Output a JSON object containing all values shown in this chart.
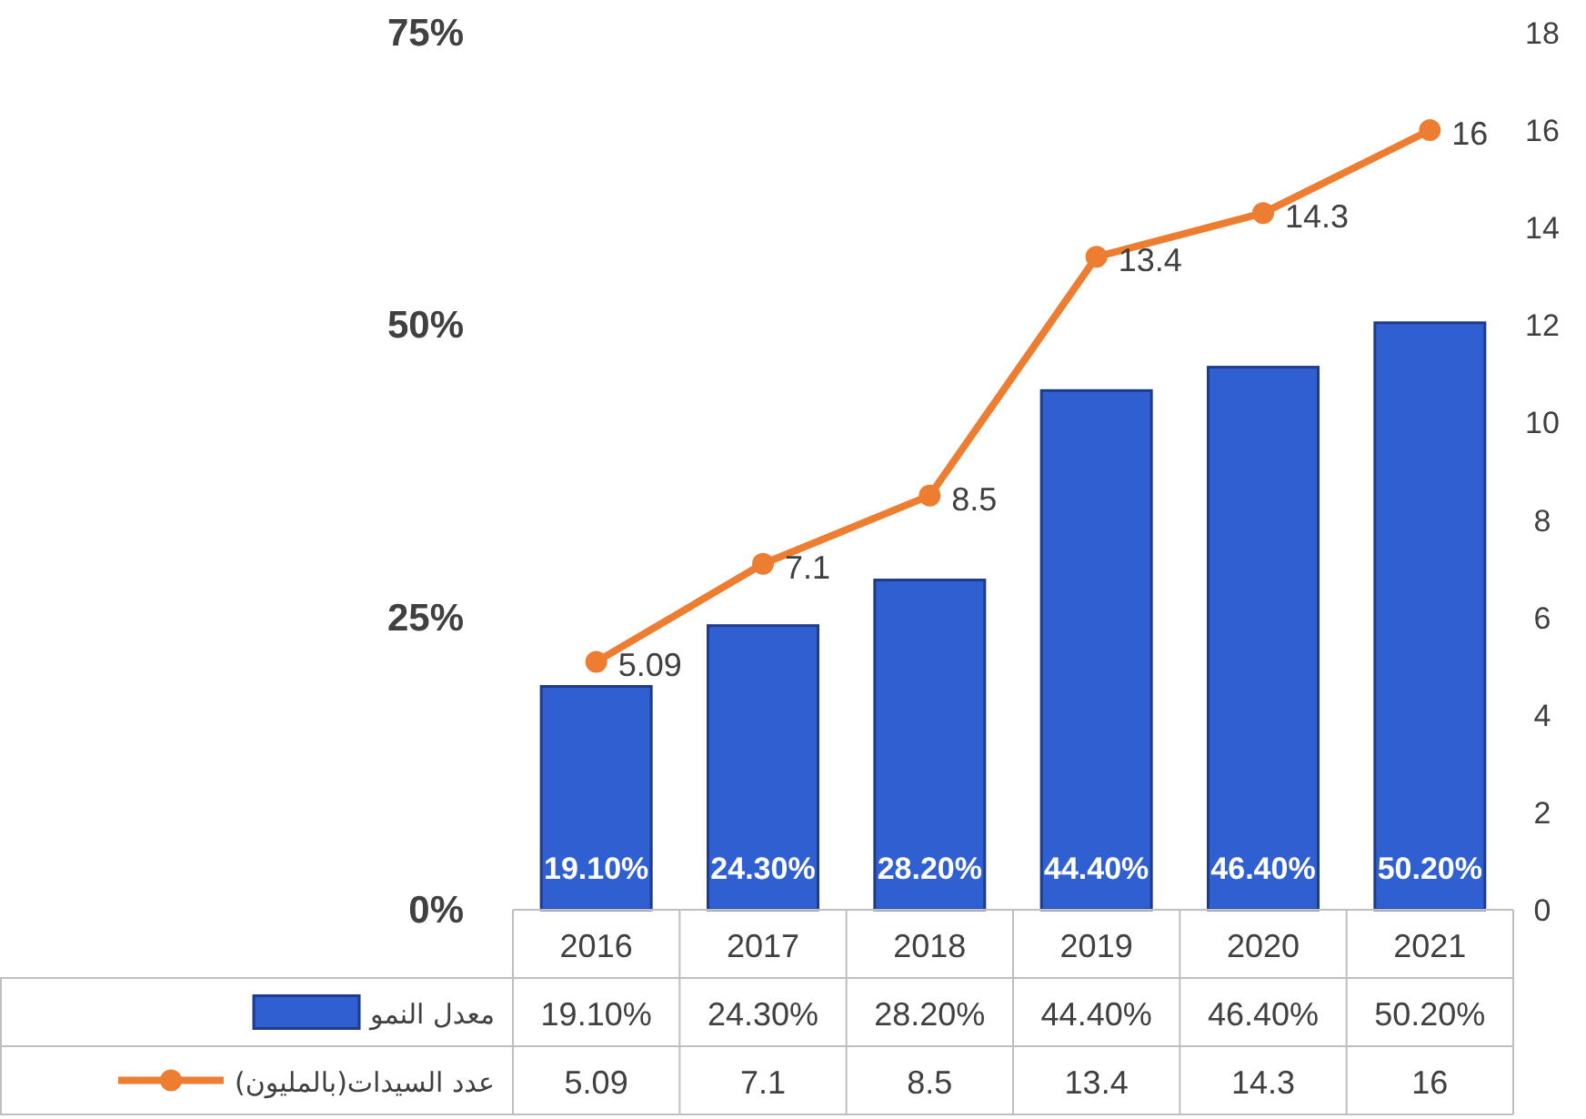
{
  "chart_data": {
    "type": "bar",
    "categories": [
      "2016",
      "2017",
      "2018",
      "2019",
      "2020",
      "2021"
    ],
    "series": [
      {
        "name": "معدل النمو",
        "color": "#2f5fd0",
        "values": [
          19.1,
          24.3,
          28.2,
          44.4,
          46.4,
          50.2
        ],
        "value_labels": [
          "19.10%",
          "24.30%",
          "28.20%",
          "44.40%",
          "46.40%",
          "50.20%"
        ]
      },
      {
        "name": "عدد السيدات(بالمليون)",
        "type": "line",
        "axis": "y2",
        "color": "#ed7d31",
        "values": [
          5.09,
          7.1,
          8.5,
          13.4,
          14.3,
          16
        ],
        "value_labels": [
          "5.09",
          "7.1",
          "8.5",
          "13.4",
          "14.3",
          "16"
        ]
      }
    ],
    "ylim": [
      0,
      75
    ],
    "yticks": [
      {
        "value": 0,
        "label": "0%"
      },
      {
        "value": 25,
        "label": "25%"
      },
      {
        "value": 50,
        "label": "50%"
      },
      {
        "value": 75,
        "label": "75%"
      }
    ],
    "y2lim": [
      0,
      18
    ],
    "y2ticks": [
      0,
      2,
      4,
      6,
      8,
      10,
      12,
      14,
      16,
      18
    ],
    "marker": "circle",
    "legend": "bottom",
    "grid": false
  }
}
